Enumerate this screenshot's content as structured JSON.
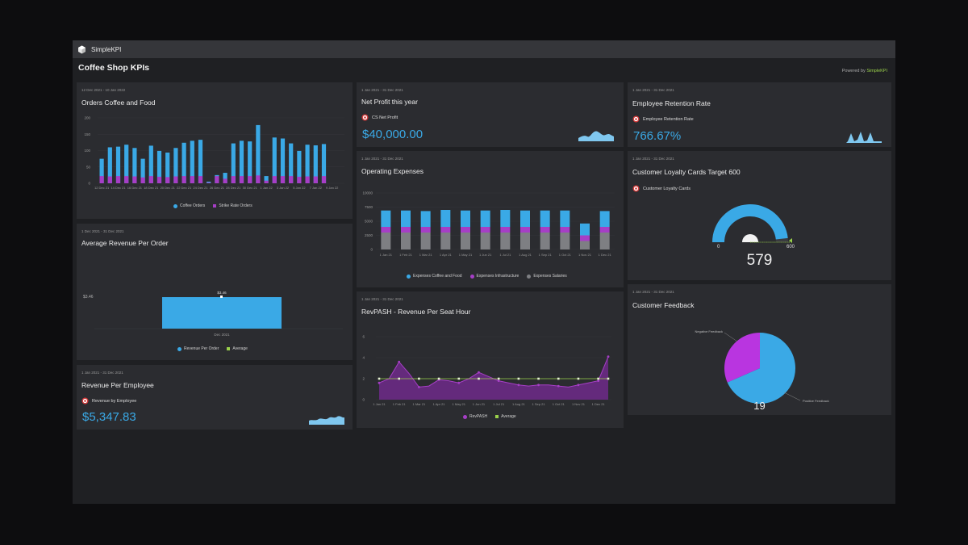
{
  "app": {
    "brand": "SimpleKPI",
    "dashboard_title": "Coffee Shop KPIs",
    "powered_prefix": "Powered by ",
    "powered_brand": "SimpleKPI"
  },
  "colors": {
    "blue": "#3aa9e6",
    "purple": "#a63ec6",
    "gray": "#7e7f83",
    "green": "#9ad14b",
    "panel": "#2b2c30"
  },
  "orders": {
    "date_range": "12 Dec 2021 - 10 Jan 2022",
    "title": "Orders Coffee and Food",
    "legend": [
      "Coffee Orders",
      "Strike Rate Orders"
    ]
  },
  "avg_revenue": {
    "date_range": "1 Dec 2021 - 31 Dec 2021",
    "title": "Average Revenue Per Order",
    "legend": [
      "Revenue Per Order",
      "Average"
    ]
  },
  "rev_employee": {
    "date_range": "1 Jan 2021 - 31 Dec 2021",
    "title": "Revenue Per Employee",
    "kpi_label": "Revenue by Employee",
    "value": "$5,347.83"
  },
  "net_profit": {
    "date_range": "1 Jan 2021 - 31 Dec 2021",
    "title": "Net Profit this year",
    "kpi_label": "CS Net Profit",
    "value": "$40,000.00"
  },
  "op_expenses": {
    "date_range": "1 Jan 2021 - 31 Dec 2021",
    "title": "Operating Expenses",
    "legend": [
      "Expenses Coffee and Food",
      "Expenses Infrastructure",
      "Expenses Salaries"
    ]
  },
  "revpash": {
    "date_range": "1 Jan 2021 - 31 Dec 2021",
    "title": "RevPASH - Revenue Per Seat Hour",
    "legend": [
      "RevPASH",
      "Average"
    ]
  },
  "retention": {
    "date_range": "1 Jan 2021 - 31 Dec 2021",
    "title": "Employee Retention Rate",
    "kpi_label": "Employee Retention Rate",
    "value": "766.67%"
  },
  "loyalty": {
    "date_range": "1 Jan 2021 - 31 Dec 2021",
    "title": "Customer Loyalty Cards Target 600",
    "kpi_label": "Customer Loyalty Cards",
    "gauge_min": "0",
    "gauge_max": "600",
    "gauge_value": 579,
    "value_text": "579"
  },
  "feedback": {
    "date_range": "1 Jan 2021 - 31 Dec 2021",
    "title": "Customer Feedback",
    "total": "19"
  },
  "chart_data": [
    {
      "id": "orders",
      "type": "bar",
      "categories": [
        "12 Dec 21",
        "13 Dec 21",
        "14 Dec 21",
        "15 Dec 21",
        "16 Dec 21",
        "17 Dec 21",
        "18 Dec 21",
        "19 Dec 21",
        "20 Dec 21",
        "21 Dec 21",
        "22 Dec 21",
        "23 Dec 21",
        "24 Dec 21",
        "25 Dec 21",
        "26 Dec 21",
        "27 Dec 21",
        "28 Dec 21",
        "29 Dec 21",
        "30 Dec 21",
        "31 Dec 21",
        "1 Jan 22",
        "2 Jan 22",
        "3 Jan 22",
        "4 Jan 22",
        "5 Jan 22",
        "6 Jan 22",
        "7 Jan 22",
        "8 Jan 22",
        "9 Jan 22",
        "10 Jan 22"
      ],
      "tick_labels": [
        "12 Dec 21",
        "14 Dec 21",
        "16 Dec 21",
        "18 Dec 21",
        "20 Dec 21",
        "22 Dec 21",
        "24 Dec 21",
        "26 Dec 21",
        "28 Dec 21",
        "30 Dec 21",
        "1 Jan 22",
        "3 Jan 22",
        "5 Jan 22",
        "7 Jan 22",
        "9 Jan 22"
      ],
      "series": [
        {
          "name": "Coffee Orders",
          "values": [
            75,
            110,
            112,
            118,
            108,
            75,
            115,
            99,
            94,
            108,
            124,
            130,
            133,
            5,
            25,
            32,
            122,
            130,
            128,
            178,
            22,
            140,
            137,
            122,
            99,
            118,
            116,
            120,
            0,
            0
          ]
        },
        {
          "name": "Strike Rate Orders",
          "values": [
            22,
            21,
            22,
            22,
            21,
            18,
            22,
            20,
            19,
            21,
            22,
            22,
            22,
            2,
            22,
            14,
            22,
            22,
            22,
            24,
            8,
            22,
            22,
            22,
            20,
            21,
            21,
            22,
            0,
            0
          ]
        }
      ],
      "y_ticks": [
        0,
        50,
        100,
        150,
        200
      ],
      "ylim": [
        0,
        200
      ]
    },
    {
      "id": "avg_revenue",
      "type": "bar",
      "categories": [
        "Dec 2021"
      ],
      "series": [
        {
          "name": "Revenue Per Order",
          "values": [
            3.46
          ]
        },
        {
          "name": "Average",
          "values": [
            3.46
          ]
        }
      ],
      "y_tick_label": "$3.46",
      "data_label": "$3.46"
    },
    {
      "id": "op_expenses",
      "type": "bar",
      "stacked": true,
      "categories": [
        "1 Jan 21",
        "1 Feb 21",
        "1 Mar 21",
        "1 Apr 21",
        "1 May 21",
        "1 Jun 21",
        "1 Jul 21",
        "1 Aug 21",
        "1 Sep 21",
        "1 Oct 21",
        "1 Nov 21",
        "1 Dec 21"
      ],
      "series": [
        {
          "name": "Expenses Salaries",
          "values": [
            3000,
            3000,
            3000,
            3000,
            3000,
            3000,
            3000,
            3000,
            3000,
            3000,
            1500,
            3000
          ]
        },
        {
          "name": "Expenses Infrastructure",
          "values": [
            1000,
            1000,
            1000,
            1000,
            1000,
            1000,
            1000,
            1000,
            1000,
            1000,
            1000,
            1000
          ]
        },
        {
          "name": "Expenses Coffee and Food",
          "values": [
            2900,
            2900,
            2800,
            3000,
            2900,
            2900,
            3000,
            2900,
            2900,
            2900,
            2100,
            2800
          ]
        }
      ],
      "y_ticks": [
        0,
        2500,
        5000,
        7500,
        10000
      ],
      "ylim": [
        0,
        10000
      ]
    },
    {
      "id": "revpash",
      "type": "area",
      "categories": [
        "1 Jan 21",
        "1 Feb 21",
        "1 Mar 21",
        "1 Apr 21",
        "1 May 21",
        "1 Jun 21",
        "1 Jul 21",
        "1 Aug 21",
        "1 Sep 21",
        "1 Oct 21",
        "1 Nov 21",
        "1 Dec 21"
      ],
      "x": [
        "1 Jan 21",
        "15 Jan 21",
        "1 Feb 21",
        "15 Feb 21",
        "1 Mar 21",
        "15 Mar 21",
        "1 Apr 21",
        "15 Apr 21",
        "1 May 21",
        "15 May 21",
        "1 Jun 21",
        "15 Jun 21",
        "1 Jul 21",
        "15 Jul 21",
        "1 Aug 21",
        "15 Aug 21",
        "1 Sep 21",
        "15 Sep 21",
        "1 Oct 21",
        "15 Oct 21",
        "1 Nov 21",
        "15 Nov 21",
        "1 Dec 21",
        "15 Dec 21"
      ],
      "series": [
        {
          "name": "RevPASH",
          "values": [
            1.6,
            2.0,
            3.6,
            2.5,
            1.2,
            1.3,
            1.9,
            1.8,
            1.6,
            2.0,
            2.6,
            2.2,
            1.8,
            1.6,
            1.4,
            1.3,
            1.4,
            1.4,
            1.3,
            1.2,
            1.4,
            1.6,
            1.8,
            4.1
          ]
        },
        {
          "name": "Average",
          "values": [
            2,
            2,
            2,
            2,
            2,
            2,
            2,
            2,
            2,
            2,
            2,
            2,
            2,
            2,
            2,
            2,
            2,
            2,
            2,
            2,
            2,
            2,
            2,
            2
          ]
        }
      ],
      "y_ticks": [
        0,
        2,
        4,
        6
      ],
      "ylim": [
        0,
        6
      ]
    },
    {
      "id": "feedback",
      "type": "pie",
      "slices": [
        {
          "name": "Positive Feedback",
          "value": 13
        },
        {
          "name": "Negative Feedback",
          "value": 6
        }
      ]
    }
  ]
}
